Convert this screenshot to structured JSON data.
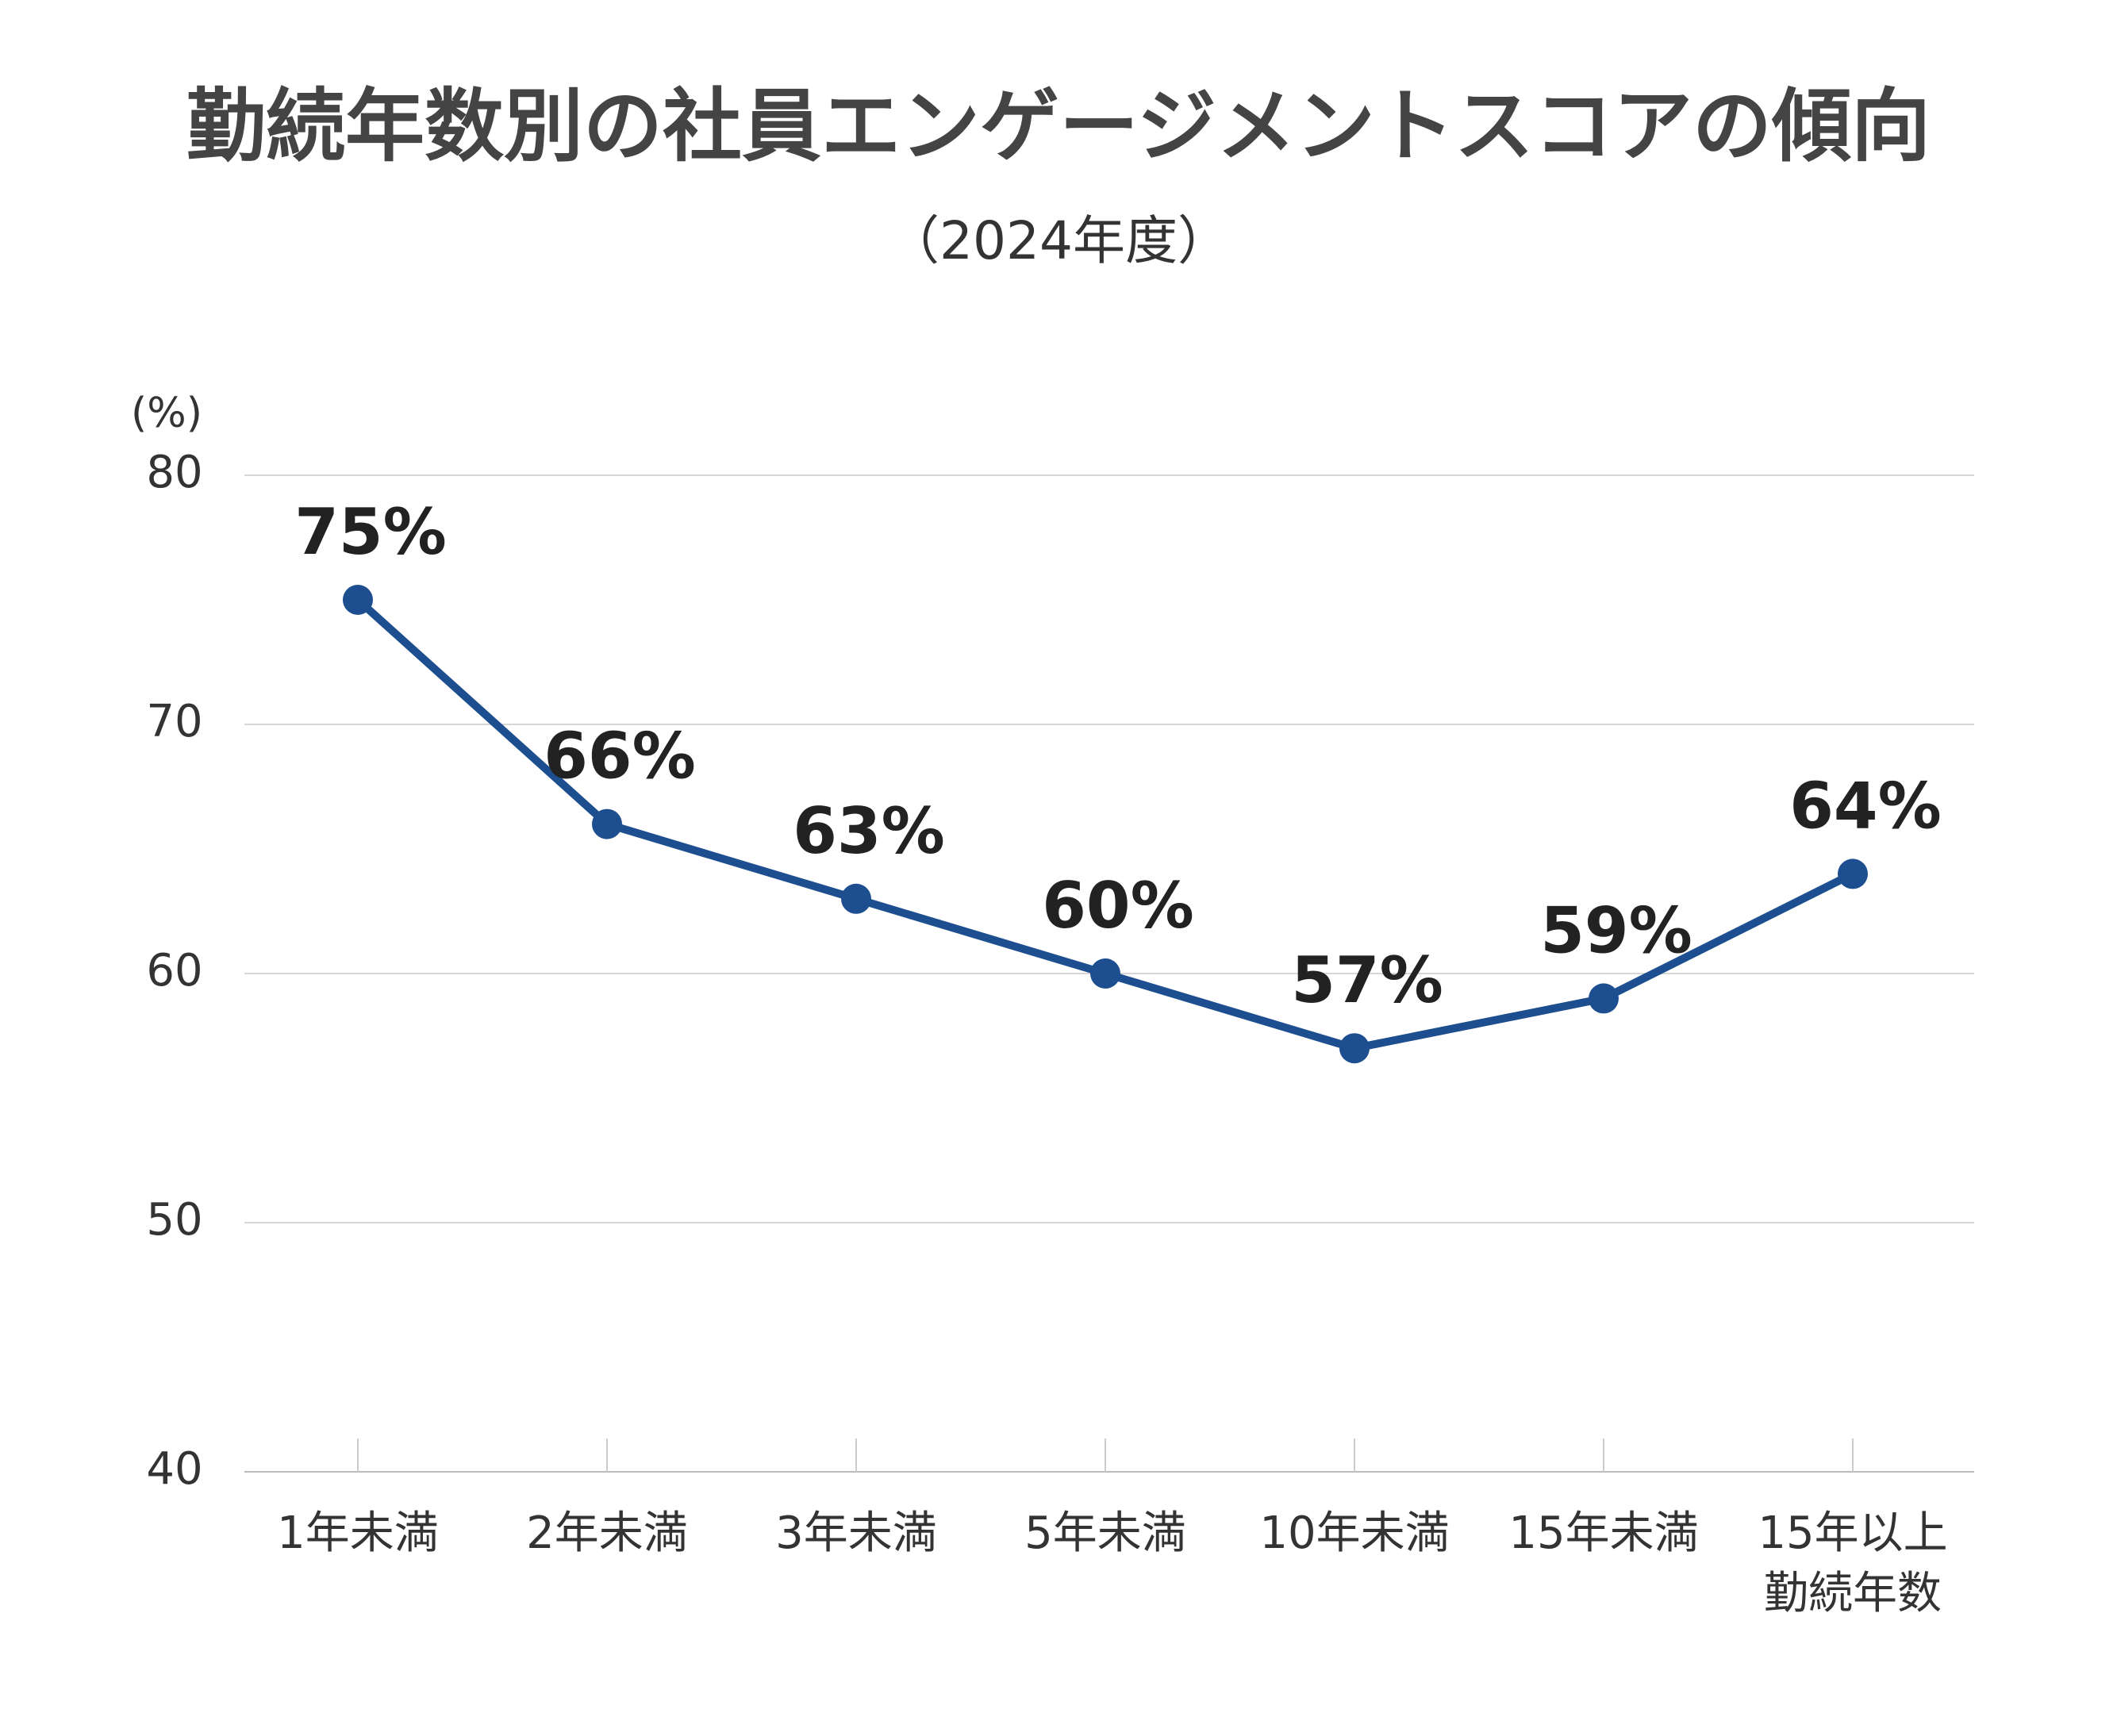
{
  "chart_data": {
    "type": "line",
    "title": "勤続年数別の社員エンゲージメントスコアの傾向",
    "subtitle": "（2024年度）",
    "y_unit": "(%)",
    "categories": [
      "1年未満",
      "2年未満",
      "3年未満",
      "5年未満",
      "10年未満",
      "15年未満",
      "15年以上\n勤続年数"
    ],
    "series": [
      {
        "name": "エンゲージメントスコア",
        "color": "#1d4e8f",
        "values": [
          75,
          66,
          63,
          60,
          57,
          59,
          64
        ],
        "value_labels": [
          "75%",
          "66%",
          "63%",
          "60%",
          "57%",
          "59%",
          "64%"
        ]
      }
    ],
    "ylim": [
      40,
      80
    ],
    "yticks": [
      40,
      50,
      60,
      70,
      80
    ],
    "grid": true
  }
}
